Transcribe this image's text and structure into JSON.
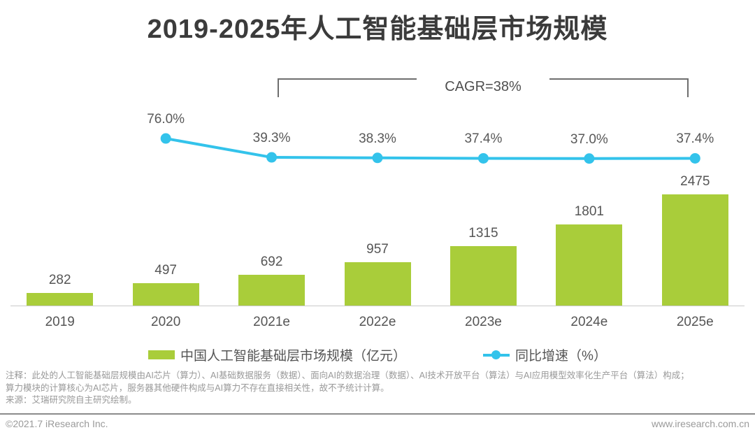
{
  "header": {
    "title": "2019-2025年人工智能基础层市场规模"
  },
  "annotation": {
    "cagr_label": "CAGR=38%"
  },
  "chart_data": {
    "type": "bar+line",
    "title": "2019-2025年人工智能基础层市场规模",
    "categories": [
      "2019",
      "2020",
      "2021e",
      "2022e",
      "2023e",
      "2024e",
      "2025e"
    ],
    "series": [
      {
        "name": "中国人工智能基础层市场规模（亿元）",
        "type": "bar",
        "color": "#a9cd3a",
        "values": [
          282,
          497,
          692,
          957,
          1315,
          1801,
          2475
        ],
        "value_labels": [
          "282",
          "497",
          "692",
          "957",
          "1315",
          "1801",
          "2475"
        ],
        "ylim": [
          0,
          2800
        ]
      },
      {
        "name": "同比增速（%）",
        "type": "line",
        "color": "#33c3eb",
        "categories": [
          "2020",
          "2021e",
          "2022e",
          "2023e",
          "2024e",
          "2025e"
        ],
        "values": [
          76.0,
          39.3,
          38.3,
          37.4,
          37.0,
          37.4
        ],
        "value_labels": [
          "76.0%",
          "39.3%",
          "38.3%",
          "37.4%",
          "37.0%",
          "37.4%"
        ],
        "ylim": [
          0,
          220
        ]
      }
    ],
    "annotations": [
      "CAGR=38%"
    ],
    "legend_position": "bottom",
    "grid": false
  },
  "legend": {
    "items": [
      {
        "label": "中国人工智能基础层市场规模（亿元）",
        "marker": "bar-swatch",
        "color": "#a9cd3a"
      },
      {
        "label": "同比增速（%）",
        "marker": "line-dot",
        "color": "#33c3eb"
      }
    ]
  },
  "notes": {
    "line1": "注释：此处的人工智能基础层规模由AI芯片（算力）、AI基础数据服务（数据）、面向AI的数据治理（数据）、AI技术开放平台（算法）与AI应用模型效率化生产平台（算法）构成；",
    "line2": "算力模块的计算核心为AI芯片，服务器其他硬件构成与AI算力不存在直接相关性，故不予统计计算。",
    "line3": "来源：艾瑞研究院自主研究绘制。"
  },
  "footer": {
    "copyright": "©2021.7 iResearch Inc.",
    "website": "www.iresearch.com.cn"
  },
  "colors": {
    "bar": "#a9cd3a",
    "line": "#33c3eb",
    "title_text": "#3b3b3b",
    "label_text": "#595959",
    "note_text": "#999999",
    "bracket": "#6e6e6e"
  }
}
